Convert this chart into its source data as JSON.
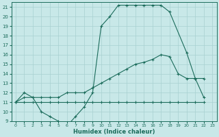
{
  "xlabel": "Humidex (Indice chaleur)",
  "bg_color": "#c8e8e8",
  "grid_color": "#a8d0d0",
  "line_color": "#1a6b5a",
  "xlim": [
    -0.5,
    23.5
  ],
  "ylim": [
    9,
    21.5
  ],
  "yticks": [
    9,
    10,
    11,
    12,
    13,
    14,
    15,
    16,
    17,
    18,
    19,
    20,
    21
  ],
  "xticks": [
    0,
    1,
    2,
    3,
    4,
    5,
    6,
    7,
    8,
    9,
    10,
    11,
    12,
    13,
    14,
    15,
    16,
    17,
    18,
    19,
    20,
    21,
    22,
    23
  ],
  "x_max": [
    0,
    1,
    2,
    3,
    4,
    5,
    6,
    7,
    8,
    9,
    10,
    11,
    12,
    13,
    14,
    15,
    16,
    17,
    18,
    20,
    21,
    22
  ],
  "y_max": [
    11,
    12,
    11.5,
    10,
    9.5,
    9,
    8.5,
    9.5,
    10.5,
    12,
    19,
    20,
    21.2,
    21.2,
    21.2,
    21.2,
    21.2,
    21.2,
    20.5,
    16.2,
    13.5,
    13.5
  ],
  "x_avg": [
    0,
    1,
    2,
    3,
    4,
    5,
    6,
    7,
    8,
    9,
    10,
    11,
    12,
    13,
    14,
    15,
    16,
    17,
    18,
    19,
    20,
    21,
    22
  ],
  "y_avg": [
    11,
    11.5,
    11.5,
    11.5,
    11.5,
    11.5,
    12,
    12,
    12,
    12.5,
    13,
    13.5,
    14,
    14.5,
    15,
    15.2,
    15.5,
    16,
    15.8,
    14,
    13.5,
    13.5,
    11.5
  ],
  "x_min": [
    0,
    1,
    2,
    3,
    4,
    5,
    6,
    7,
    8,
    9,
    10,
    11,
    12,
    13,
    14,
    15,
    16,
    17,
    18,
    19,
    20,
    21,
    22
  ],
  "y_min": [
    11,
    11,
    11,
    11,
    11,
    11,
    11,
    11,
    11,
    11,
    11,
    11,
    11,
    11,
    11,
    11,
    11,
    11,
    11,
    11,
    11,
    11,
    11
  ]
}
